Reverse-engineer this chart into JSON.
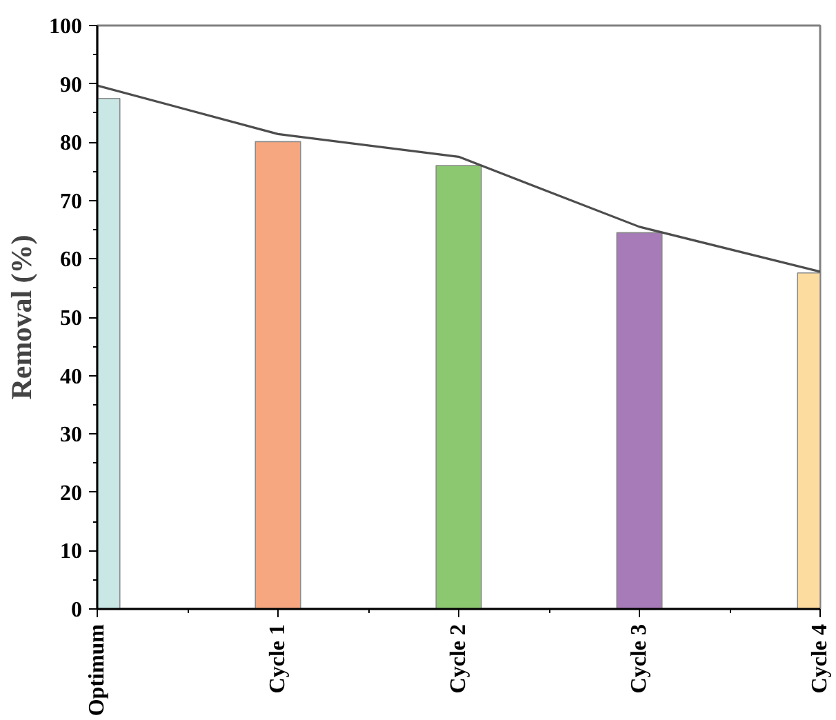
{
  "chart_data": {
    "type": "bar",
    "ylabel": "Removal (%)",
    "categories": [
      "Optimum",
      "Cycle 1",
      "Cycle 2",
      "Cycle 3",
      "Cycle 4"
    ],
    "series": [
      {
        "type": "line",
        "color": "#4d4d4d",
        "values": [
          89.7,
          81.4,
          77.5,
          65.5,
          57.8
        ]
      },
      {
        "colors": [
          "#c9e7e4",
          "#f7a77f",
          "#8cc870",
          "#a77ab8",
          "#fcdc9f"
        ],
        "values": [
          87.5,
          80.1,
          76.0,
          64.5,
          57.6
        ]
      }
    ],
    "ylim": [
      0,
      100
    ],
    "yticks": [
      0,
      10,
      20,
      30,
      40,
      50,
      60,
      70,
      80,
      90,
      100
    ],
    "grid": false
  }
}
